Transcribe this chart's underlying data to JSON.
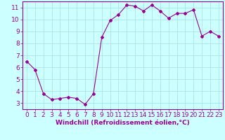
{
  "x": [
    0,
    1,
    2,
    3,
    4,
    5,
    6,
    7,
    8,
    9,
    10,
    11,
    12,
    13,
    14,
    15,
    16,
    17,
    18,
    19,
    20,
    21,
    22,
    23
  ],
  "y": [
    6.5,
    5.8,
    3.8,
    3.3,
    3.4,
    3.5,
    3.4,
    2.9,
    3.8,
    8.5,
    9.9,
    10.4,
    11.2,
    11.1,
    10.7,
    11.2,
    10.7,
    10.1,
    10.5,
    10.5,
    10.8,
    8.6,
    9.0,
    8.6
  ],
  "line_color": "#990099",
  "marker": "D",
  "marker_size": 2,
  "background_color": "#ccffff",
  "grid_color": "#aadddd",
  "xlabel": "Windchill (Refroidissement éolien,°C)",
  "ylabel": "",
  "xlim": [
    -0.5,
    23.5
  ],
  "ylim": [
    2.5,
    11.5
  ],
  "yticks": [
    3,
    4,
    5,
    6,
    7,
    8,
    9,
    10,
    11
  ],
  "xticks": [
    0,
    1,
    2,
    3,
    4,
    5,
    6,
    7,
    8,
    9,
    10,
    11,
    12,
    13,
    14,
    15,
    16,
    17,
    18,
    19,
    20,
    21,
    22,
    23
  ],
  "tick_color": "#990099",
  "label_color": "#990099",
  "axis_color": "#990099",
  "font_size_xlabel": 6.5,
  "font_size_ticks": 6.5
}
